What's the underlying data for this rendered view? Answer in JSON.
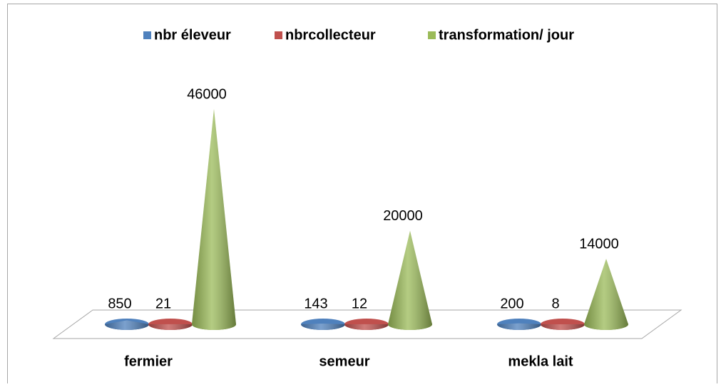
{
  "chart_data": {
    "type": "cone",
    "categories": [
      "fermier",
      "semeur",
      "mekla lait"
    ],
    "series": [
      {
        "name": "nbr éleveur",
        "color": "#4f81bd",
        "values": [
          850,
          143,
          200
        ]
      },
      {
        "name": "nbrcollecteur",
        "color": "#c0504d",
        "values": [
          21,
          12,
          8
        ]
      },
      {
        "name": "transformation/ jour",
        "color": "#9bbb59",
        "values": [
          46000,
          20000,
          14000
        ]
      }
    ],
    "legend": "top"
  }
}
